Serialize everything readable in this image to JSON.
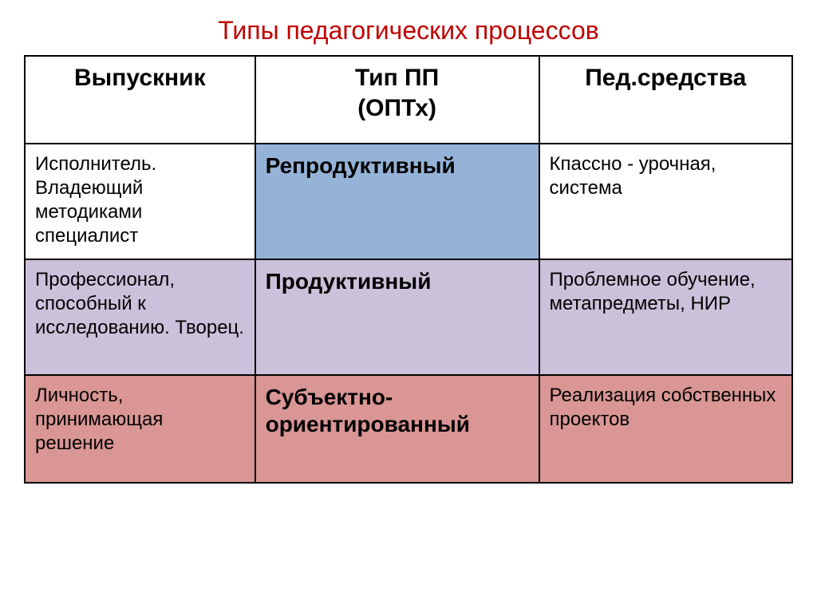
{
  "title": "Типы педагогических процессов",
  "title_color": "#c00000",
  "table": {
    "type": "table",
    "border_color": "#000000",
    "columns": [
      {
        "label": "Выпускник",
        "width": "30%"
      },
      {
        "label": "Тип ПП",
        "sublabel": "(ОПТх)",
        "width": "37%"
      },
      {
        "label": "Пед.средства",
        "width": "33%"
      }
    ],
    "header_fontsize": 30,
    "header_fontweight": "bold",
    "col1_fontsize": 24,
    "col2_fontsize": 28,
    "col2_fontweight": "bold",
    "col3_fontsize": 24,
    "rows": [
      {
        "graduate": "Исполнитель. Владеющий методиками специалист",
        "type": "Репродуктивный",
        "means": "Кпассно - урочная, система",
        "colors": {
          "col1": "#ffffff",
          "col2": "#95b3d7",
          "col3": "#ffffff"
        }
      },
      {
        "graduate": "Профессионал, способный к исследованию. Творец.",
        "type": "Продуктивный",
        "means": "Проблемное обучение, метапредметы, НИР",
        "colors": {
          "col1": "#ccc1da",
          "col2": "#ccc1da",
          "col3": "#ccc1da"
        }
      },
      {
        "graduate": "Личность, принимающая решение",
        "type": "Субъектно-ориентированный",
        "means": "Реализация собственных проектов",
        "colors": {
          "col1": "#d99694",
          "col2": "#d99694",
          "col3": "#d99694"
        }
      }
    ]
  }
}
